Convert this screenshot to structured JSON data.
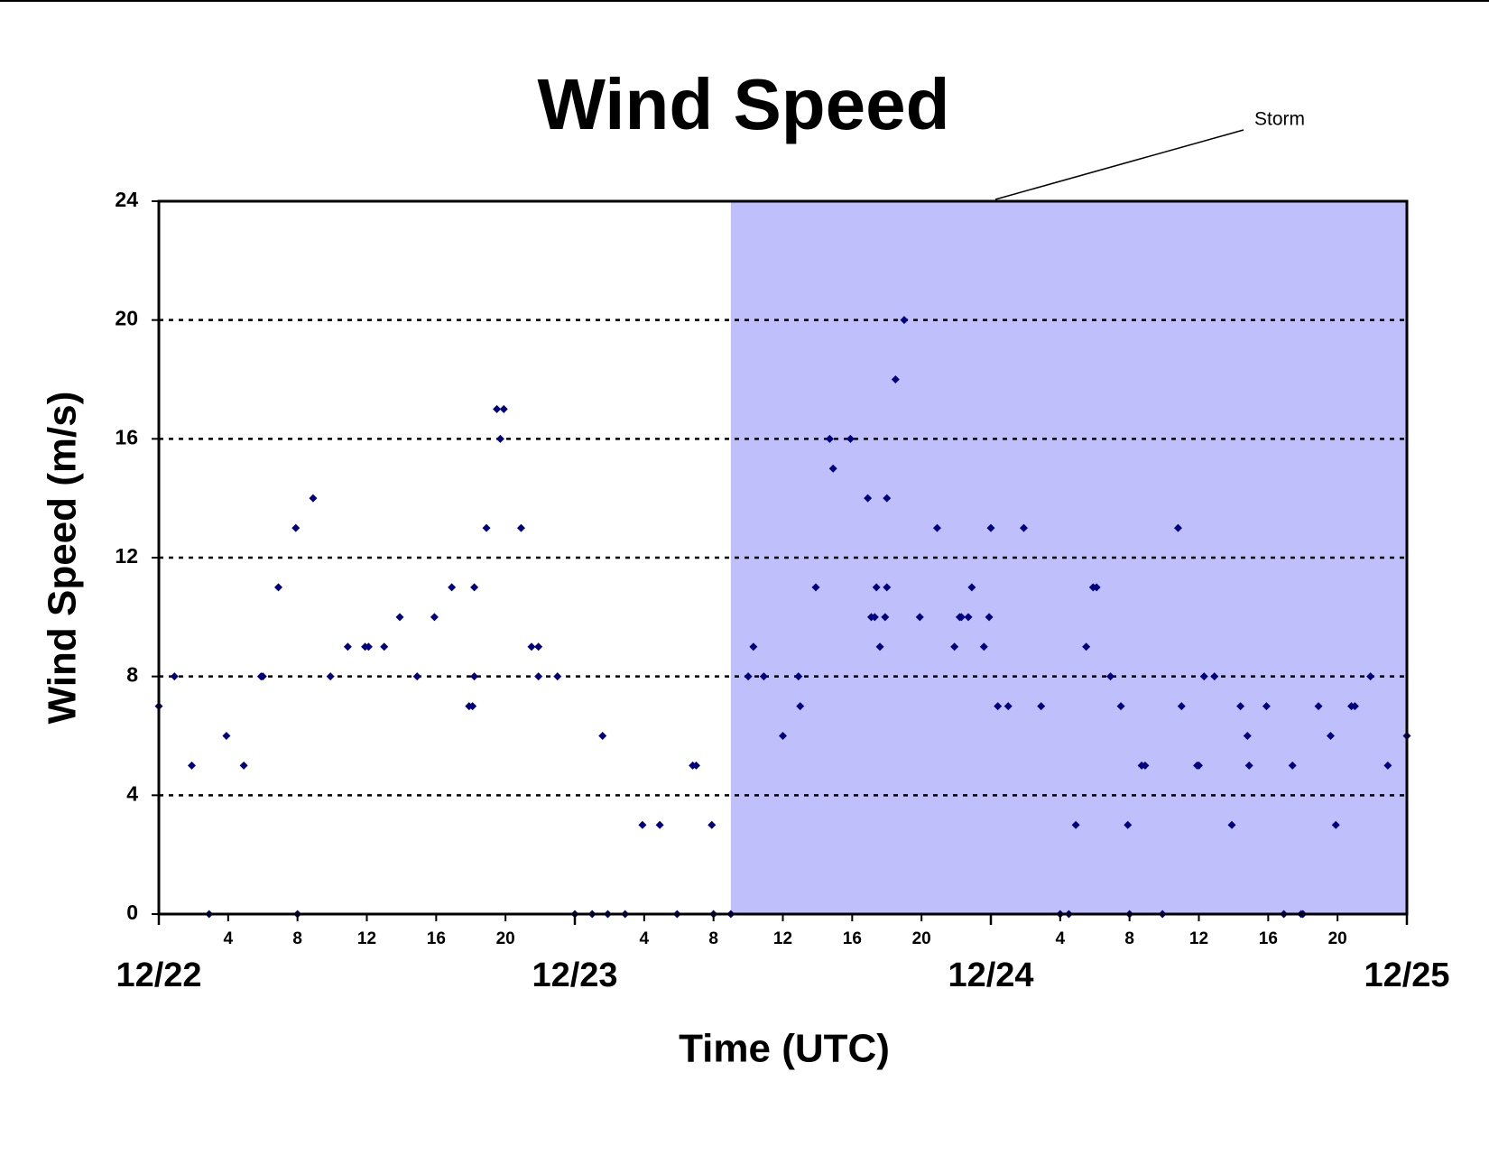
{
  "chart_data": {
    "type": "scatter",
    "title": "Wind Speed",
    "xlabel": "Time (UTC)",
    "ylabel": "Wind Speed (m/s)",
    "xlim": [
      0,
      72
    ],
    "ylim": [
      0,
      24
    ],
    "yticks": [
      0,
      4,
      8,
      12,
      16,
      20,
      24
    ],
    "xticks": [
      {
        "value": 4,
        "label": "4"
      },
      {
        "value": 8,
        "label": "8"
      },
      {
        "value": 12,
        "label": "12"
      },
      {
        "value": 16,
        "label": "16"
      },
      {
        "value": 20,
        "label": "20"
      },
      {
        "value": 28,
        "label": "4"
      },
      {
        "value": 32,
        "label": "8"
      },
      {
        "value": 36,
        "label": "12"
      },
      {
        "value": 40,
        "label": "16"
      },
      {
        "value": 44,
        "label": "20"
      },
      {
        "value": 52,
        "label": "4"
      },
      {
        "value": 56,
        "label": "8"
      },
      {
        "value": 60,
        "label": "12"
      },
      {
        "value": 64,
        "label": "16"
      },
      {
        "value": 68,
        "label": "20"
      }
    ],
    "date_ticks": [
      {
        "value": 0,
        "label": "12/22"
      },
      {
        "value": 24,
        "label": "12/23"
      },
      {
        "value": 48,
        "label": "12/24"
      },
      {
        "value": 72,
        "label": "12/25"
      }
    ],
    "grid": true,
    "shade": {
      "label": "Storm",
      "from": 33,
      "to": 72,
      "color": "#bfbffb"
    },
    "series": [
      {
        "name": "Wind Speed",
        "color": "#000080",
        "x": [
          0,
          0.9,
          1.9,
          2.9,
          3.9,
          4.9,
          5.9,
          6,
          6.9,
          7.9,
          8,
          8.9,
          9.9,
          10.9,
          11.9,
          12.1,
          13,
          13.9,
          14.9,
          15.9,
          16.9,
          17.9,
          18.1,
          18.2,
          18.2,
          18.9,
          19.5,
          19.7,
          19.9,
          20.9,
          21.5,
          21.9,
          21.9,
          23,
          24,
          25,
          25.6,
          25.9,
          26.9,
          27.9,
          28.9,
          29.9,
          30.8,
          31,
          31.9,
          32,
          33,
          34,
          34.3,
          34.9,
          36,
          36.9,
          37,
          37.9,
          38.7,
          38.9,
          39.9,
          40.9,
          41.1,
          41.3,
          41.4,
          41.6,
          41.9,
          42,
          42,
          42.5,
          43,
          43.9,
          44.9,
          45.9,
          46.2,
          46.3,
          46.7,
          46.9,
          47.6,
          47.9,
          48,
          48.4,
          49,
          49.9,
          50.9,
          52,
          52.5,
          52.9,
          53.5,
          53.9,
          54.1,
          54.9,
          55.5,
          55.9,
          56,
          56.7,
          56.9,
          57.9,
          58.8,
          59,
          59.9,
          60,
          60.3,
          60.9,
          61.9,
          62.4,
          62.8,
          62.9,
          63.9,
          64.9,
          65.4,
          65.9,
          66,
          66.9,
          67.6,
          67.9,
          68.8,
          69,
          69.9,
          70.9,
          72
        ],
        "values": [
          7,
          8,
          5,
          0,
          6,
          5,
          8,
          8,
          11,
          13,
          0,
          14,
          8,
          9,
          9,
          9,
          9,
          10,
          8,
          10,
          11,
          7,
          7,
          11,
          8,
          13,
          17,
          16,
          17,
          13,
          9,
          9,
          8,
          8,
          0,
          0,
          6,
          0,
          0,
          3,
          3,
          0,
          5,
          5,
          3,
          0,
          0,
          8,
          9,
          8,
          6,
          8,
          7,
          11,
          16,
          15,
          16,
          14,
          10,
          10,
          11,
          9,
          10,
          11,
          14,
          18,
          20,
          10,
          13,
          9,
          10,
          10,
          10,
          11,
          9,
          10,
          13,
          7,
          7,
          13,
          7,
          0,
          0,
          3,
          9,
          11,
          11,
          8,
          7,
          3,
          0,
          5,
          5,
          0,
          13,
          7,
          5,
          5,
          8,
          8,
          3,
          7,
          6,
          5,
          7,
          0,
          5,
          0,
          0,
          7,
          6,
          3,
          7,
          7,
          8,
          5,
          6
        ]
      }
    ]
  }
}
